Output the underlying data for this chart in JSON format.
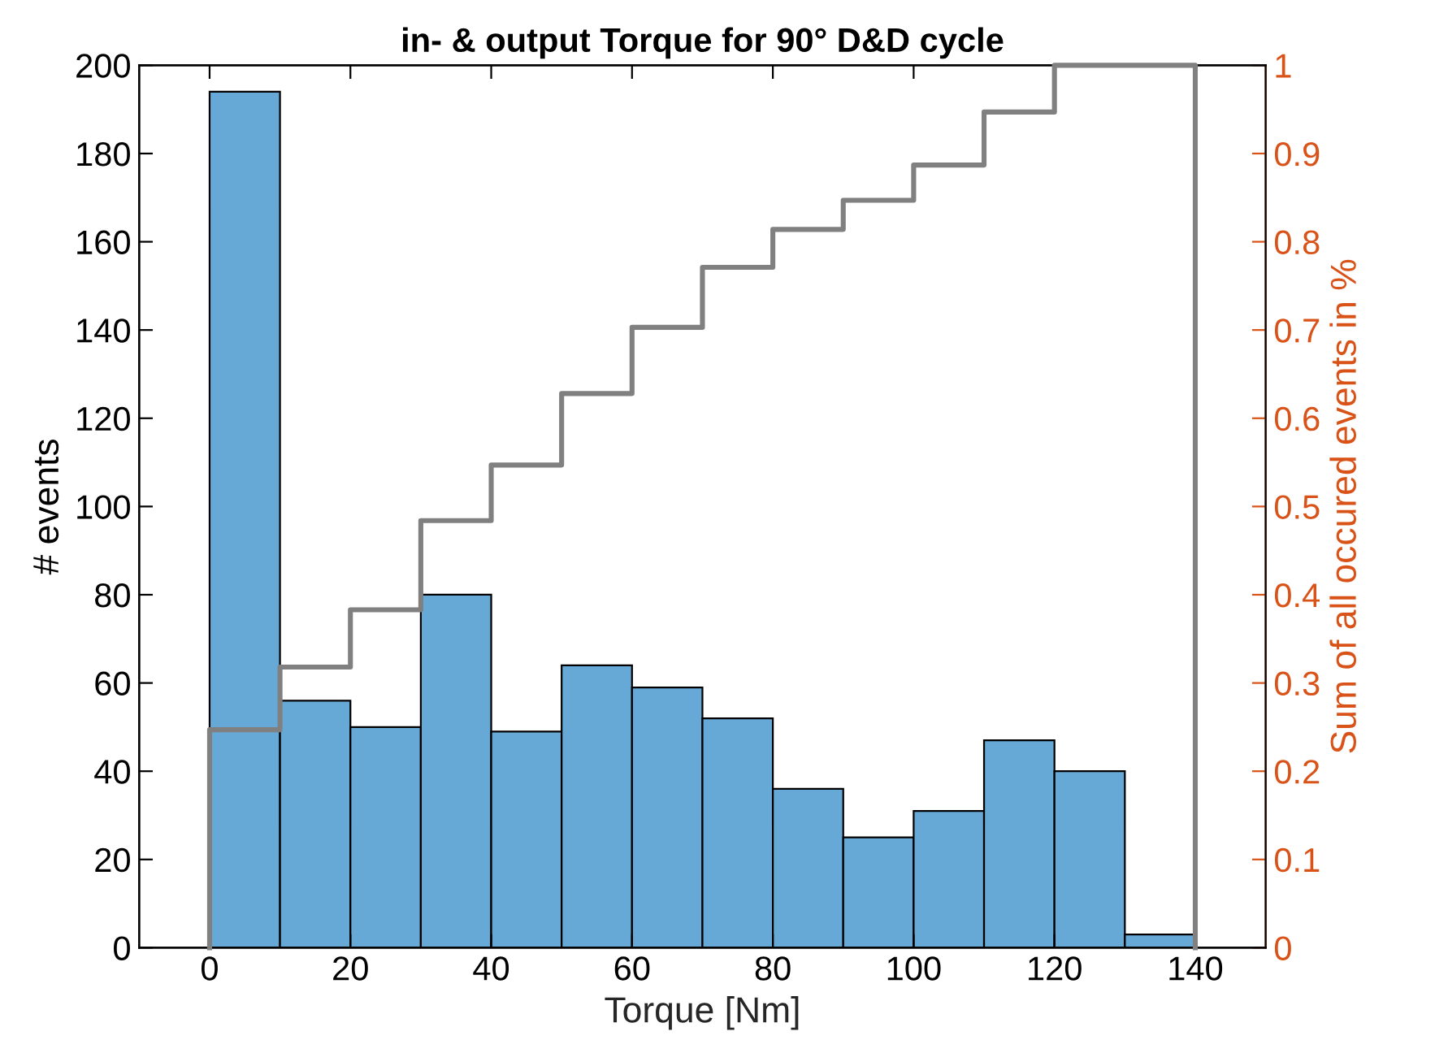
{
  "chart_data": {
    "type": "histogram",
    "title": "in- & output Torque for 90° D&D cycle",
    "xlabel": "Torque [Nm]",
    "ylabel": "# events",
    "y2label": "Sum of all occured events in %",
    "bins": [
      0,
      10,
      20,
      30,
      40,
      50,
      60,
      70,
      80,
      90,
      100,
      110,
      120,
      130,
      140
    ],
    "values": [
      194,
      56,
      50,
      80,
      49,
      64,
      59,
      52,
      36,
      25,
      31,
      47,
      40,
      3
    ],
    "color": "#66a9d6",
    "series": [
      {
        "type": "step",
        "axis": "y2",
        "color": "#808080",
        "x": [
          0,
          0,
          10,
          20,
          30,
          40,
          50,
          60,
          70,
          80,
          90,
          100,
          110,
          120,
          130,
          140
        ],
        "values": [
          0,
          0.247,
          0.318,
          0.383,
          0.484,
          0.547,
          0.628,
          0.703,
          0.771,
          0.814,
          0.847,
          0.887,
          0.947,
          1.0,
          1.0,
          0
        ]
      }
    ],
    "xlim": [
      -10,
      150
    ],
    "xticks": [
      0,
      20,
      40,
      60,
      80,
      100,
      120,
      140
    ],
    "ylim": [
      0,
      200
    ],
    "yticks": [
      0,
      20,
      40,
      60,
      80,
      100,
      120,
      140,
      160,
      180,
      200
    ],
    "y2lim": [
      0,
      1
    ],
    "y2ticks": [
      0,
      0.1,
      0.2,
      0.3,
      0.4,
      0.5,
      0.6,
      0.7,
      0.8,
      0.9,
      1
    ],
    "grid": false,
    "legend": false
  }
}
